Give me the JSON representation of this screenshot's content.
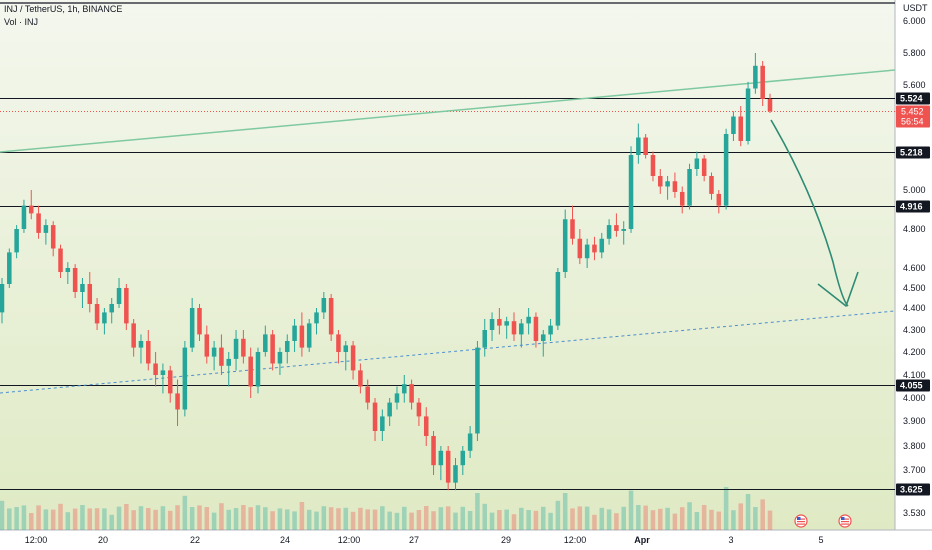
{
  "header": {
    "symbol": "INJ / TetherUS, 1h, BINANCE",
    "volume_label": "Vol · INJ"
  },
  "chart_data": {
    "type": "candlestick",
    "quote_unit": "USDT",
    "y_ticks": [
      "6.000",
      "5.800",
      "5.600",
      "5.000",
      "4.800",
      "4.600",
      "4.500",
      "4.400",
      "4.300",
      "4.200",
      "4.100",
      "4.000",
      "3.900",
      "3.800",
      "3.700",
      "3.530"
    ],
    "x_ticks": [
      "12:00",
      "20",
      "22",
      "24",
      "12:00",
      "27",
      "29",
      "12:00",
      "Apr",
      "3",
      "5"
    ],
    "horizontal_levels": [
      {
        "label": "5.524",
        "value": 5.524
      },
      {
        "label": "5.218",
        "value": 5.218
      },
      {
        "label": "4.916",
        "value": 4.916
      },
      {
        "label": "4.055",
        "value": 4.055
      },
      {
        "label": "3.625",
        "value": 3.625
      }
    ],
    "current_price": {
      "value": "5.452",
      "countdown": "56:54"
    },
    "colors": {
      "up": "#26a69a",
      "down": "#ef5350",
      "trendline": "#7fc9a0",
      "support": "#4a8fd0",
      "arrow": "#2e8b74",
      "level_line": "#131722",
      "background_top": "#f3f6ec",
      "background_bottom": "#e2ecc8"
    },
    "projection": "arrow pointing down toward support trendline",
    "candles_approx": [
      [
        4.38,
        4.55,
        4.33,
        4.52
      ],
      [
        4.52,
        4.7,
        4.5,
        4.68
      ],
      [
        4.68,
        4.82,
        4.65,
        4.8
      ],
      [
        4.8,
        4.95,
        4.78,
        4.92
      ],
      [
        4.92,
        5.0,
        4.85,
        4.88
      ],
      [
        4.88,
        4.92,
        4.75,
        4.78
      ],
      [
        4.78,
        4.85,
        4.72,
        4.82
      ],
      [
        4.82,
        4.84,
        4.66,
        4.7
      ],
      [
        4.7,
        4.72,
        4.55,
        4.58
      ],
      [
        4.58,
        4.63,
        4.52,
        4.6
      ],
      [
        4.6,
        4.62,
        4.45,
        4.48
      ],
      [
        4.48,
        4.55,
        4.4,
        4.52
      ],
      [
        4.52,
        4.58,
        4.38,
        4.42
      ],
      [
        4.42,
        4.45,
        4.3,
        4.33
      ],
      [
        4.33,
        4.4,
        4.28,
        4.38
      ],
      [
        4.38,
        4.45,
        4.33,
        4.42
      ],
      [
        4.42,
        4.55,
        4.4,
        4.5
      ],
      [
        4.5,
        4.52,
        4.3,
        4.33
      ],
      [
        4.33,
        4.35,
        4.18,
        4.22
      ],
      [
        4.22,
        4.28,
        4.15,
        4.25
      ],
      [
        4.25,
        4.3,
        4.12,
        4.15
      ],
      [
        4.15,
        4.2,
        4.05,
        4.1
      ],
      [
        4.1,
        4.15,
        4.02,
        4.12
      ],
      [
        4.12,
        4.14,
        3.98,
        4.02
      ],
      [
        4.02,
        4.08,
        3.88,
        3.95
      ],
      [
        3.95,
        4.25,
        3.92,
        4.22
      ],
      [
        4.22,
        4.45,
        4.2,
        4.4
      ],
      [
        4.4,
        4.42,
        4.25,
        4.28
      ],
      [
        4.28,
        4.32,
        4.15,
        4.18
      ],
      [
        4.18,
        4.25,
        4.12,
        4.22
      ],
      [
        4.22,
        4.28,
        4.1,
        4.14
      ],
      [
        4.14,
        4.2,
        4.05,
        4.17
      ],
      [
        4.17,
        4.3,
        4.12,
        4.26
      ],
      [
        4.26,
        4.3,
        4.15,
        4.18
      ],
      [
        4.18,
        4.22,
        4.0,
        4.05
      ],
      [
        4.05,
        4.22,
        4.02,
        4.2
      ],
      [
        4.2,
        4.32,
        4.18,
        4.28
      ],
      [
        4.28,
        4.3,
        4.12,
        4.15
      ],
      [
        4.15,
        4.22,
        4.1,
        4.2
      ],
      [
        4.2,
        4.28,
        4.15,
        4.25
      ],
      [
        4.25,
        4.35,
        4.2,
        4.32
      ],
      [
        4.32,
        4.38,
        4.18,
        4.22
      ],
      [
        4.22,
        4.35,
        4.2,
        4.33
      ],
      [
        4.33,
        4.4,
        4.28,
        4.38
      ],
      [
        4.38,
        4.48,
        4.35,
        4.45
      ],
      [
        4.45,
        4.47,
        4.25,
        4.28
      ],
      [
        4.28,
        4.3,
        4.15,
        4.2
      ],
      [
        4.2,
        4.25,
        4.12,
        4.23
      ],
      [
        4.23,
        4.25,
        4.08,
        4.12
      ],
      [
        4.12,
        4.15,
        4.02,
        4.05
      ],
      [
        4.05,
        4.08,
        3.95,
        3.98
      ],
      [
        3.98,
        4.0,
        3.82,
        3.86
      ],
      [
        3.86,
        3.95,
        3.82,
        3.92
      ],
      [
        3.92,
        4.0,
        3.88,
        3.98
      ],
      [
        3.98,
        4.05,
        3.95,
        4.02
      ],
      [
        4.02,
        4.1,
        3.98,
        4.06
      ],
      [
        4.06,
        4.08,
        3.95,
        3.98
      ],
      [
        3.98,
        4.0,
        3.88,
        3.92
      ],
      [
        3.92,
        3.96,
        3.8,
        3.84
      ],
      [
        3.84,
        3.86,
        3.68,
        3.72
      ],
      [
        3.72,
        3.8,
        3.66,
        3.78
      ],
      [
        3.78,
        3.8,
        3.62,
        3.65
      ],
      [
        3.65,
        3.75,
        3.62,
        3.72
      ],
      [
        3.72,
        3.8,
        3.68,
        3.78
      ],
      [
        3.78,
        3.88,
        3.75,
        3.85
      ],
      [
        3.85,
        4.25,
        3.82,
        4.22
      ],
      [
        4.22,
        4.35,
        4.18,
        4.3
      ],
      [
        4.3,
        4.38,
        4.25,
        4.35
      ],
      [
        4.35,
        4.4,
        4.28,
        4.32
      ],
      [
        4.32,
        4.36,
        4.26,
        4.34
      ],
      [
        4.34,
        4.38,
        4.25,
        4.28
      ],
      [
        4.28,
        4.35,
        4.22,
        4.33
      ],
      [
        4.33,
        4.4,
        4.28,
        4.36
      ],
      [
        4.36,
        4.38,
        4.22,
        4.25
      ],
      [
        4.25,
        4.3,
        4.18,
        4.28
      ],
      [
        4.28,
        4.35,
        4.25,
        4.32
      ],
      [
        4.32,
        4.6,
        4.3,
        4.58
      ],
      [
        4.58,
        4.9,
        4.55,
        4.85
      ],
      [
        4.85,
        4.92,
        4.72,
        4.75
      ],
      [
        4.75,
        4.8,
        4.62,
        4.65
      ],
      [
        4.65,
        4.75,
        4.6,
        4.72
      ],
      [
        4.72,
        4.76,
        4.64,
        4.68
      ],
      [
        4.68,
        4.78,
        4.65,
        4.75
      ],
      [
        4.75,
        4.85,
        4.72,
        4.82
      ],
      [
        4.82,
        4.88,
        4.76,
        4.79
      ],
      [
        4.79,
        4.84,
        4.72,
        4.8
      ],
      [
        4.8,
        5.25,
        4.78,
        5.2
      ],
      [
        5.2,
        5.38,
        5.15,
        5.3
      ],
      [
        5.3,
        5.32,
        5.18,
        5.2
      ],
      [
        5.2,
        5.22,
        5.05,
        5.08
      ],
      [
        5.08,
        5.12,
        4.98,
        5.02
      ],
      [
        5.02,
        5.08,
        4.95,
        5.05
      ],
      [
        5.05,
        5.1,
        4.96,
        4.99
      ],
      [
        4.99,
        5.02,
        4.88,
        4.92
      ],
      [
        4.92,
        5.15,
        4.9,
        5.12
      ],
      [
        5.12,
        5.22,
        5.08,
        5.18
      ],
      [
        5.18,
        5.2,
        5.05,
        5.08
      ],
      [
        5.08,
        5.1,
        4.95,
        4.98
      ],
      [
        4.98,
        5.0,
        4.88,
        4.92
      ],
      [
        4.92,
        5.35,
        4.9,
        5.32
      ],
      [
        5.32,
        5.45,
        5.28,
        5.42
      ],
      [
        5.42,
        5.48,
        5.25,
        5.28
      ],
      [
        5.28,
        5.62,
        5.26,
        5.58
      ],
      [
        5.58,
        5.8,
        5.55,
        5.72
      ],
      [
        5.72,
        5.75,
        5.48,
        5.52
      ],
      [
        5.52,
        5.55,
        5.44,
        5.45
      ]
    ]
  }
}
